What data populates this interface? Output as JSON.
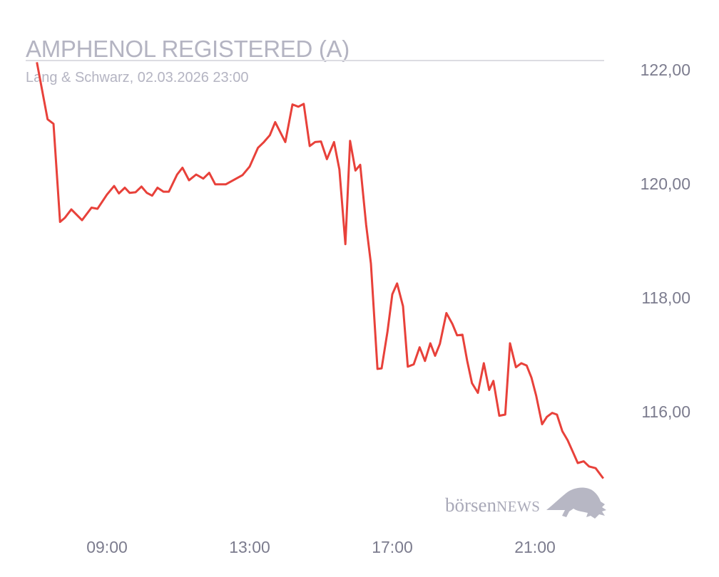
{
  "header": {
    "title": "AMPHENOL REGISTERED (A)",
    "subtitle": "Lang & Schwarz, 02.03.2026 23:00"
  },
  "logo": {
    "text_main": "börsen",
    "text_caps": "NEWS",
    "icon": "bull-icon"
  },
  "colors": {
    "line": "#e8413a",
    "text": "#b4b4c2",
    "ticks": "#7c7c8e",
    "rule": "#dcdce2"
  },
  "chart_data": {
    "type": "line",
    "title": "AMPHENOL REGISTERED (A)",
    "subtitle": "Lang & Schwarz, 02.03.2026 23:00",
    "xlabel": "",
    "ylabel": "",
    "xlim": [
      "07:00",
      "23:00"
    ],
    "ylim": [
      114.1,
      122.16
    ],
    "x_ticks": [
      "09:00",
      "13:00",
      "17:00",
      "21:00"
    ],
    "y_ticks": [
      {
        "value": 122,
        "label": "122,00"
      },
      {
        "value": 120,
        "label": "120,00"
      },
      {
        "value": 118,
        "label": "118,00"
      },
      {
        "value": 116,
        "label": "116,00"
      }
    ],
    "y_axis_position": "right",
    "grid": false,
    "series": [
      {
        "x": [
          "07:02",
          "07:20",
          "07:30",
          "07:41",
          "07:49",
          "08:00",
          "08:18",
          "08:34",
          "08:44",
          "09:00",
          "09:12",
          "09:20",
          "09:30",
          "09:38",
          "09:48",
          "09:58",
          "10:07",
          "10:16",
          "10:25",
          "10:35",
          "10:44",
          "10:58",
          "11:07",
          "11:18",
          "11:30",
          "11:42",
          "11:52",
          "12:02",
          "12:20",
          "12:48",
          "13:00",
          "13:14",
          "13:24",
          "13:34",
          "13:43",
          "14:00",
          "14:12",
          "14:22",
          "14:31",
          "14:41",
          "14:50",
          "15:00",
          "15:10",
          "15:22",
          "15:31",
          "15:41",
          "15:49",
          "15:58",
          "16:06",
          "16:16",
          "16:24",
          "16:35",
          "16:42",
          "16:52",
          "17:00",
          "17:08",
          "17:18",
          "17:26",
          "17:36",
          "17:46",
          "17:55",
          "18:04",
          "18:12",
          "18:20",
          "18:31",
          "18:41",
          "18:49",
          "18:58",
          "19:06",
          "19:14",
          "19:24",
          "19:34",
          "19:43",
          "19:50",
          "20:00",
          "20:10",
          "20:18",
          "20:28",
          "20:37",
          "20:46",
          "20:54",
          "21:02",
          "21:12",
          "21:20",
          "21:29",
          "21:37",
          "21:46",
          "21:55",
          "22:04",
          "22:12",
          "22:22",
          "22:31",
          "22:42",
          "22:55"
        ],
        "y": [
          122.13,
          121.13,
          121.05,
          119.33,
          119.4,
          119.55,
          119.36,
          119.58,
          119.56,
          119.81,
          119.96,
          119.83,
          119.93,
          119.84,
          119.85,
          119.95,
          119.84,
          119.79,
          119.93,
          119.86,
          119.86,
          120.16,
          120.28,
          120.06,
          120.16,
          120.09,
          120.19,
          119.99,
          119.99,
          120.15,
          120.3,
          120.63,
          120.73,
          120.85,
          121.08,
          120.73,
          121.39,
          121.35,
          121.4,
          120.66,
          120.73,
          120.74,
          120.43,
          120.73,
          120.25,
          118.94,
          120.75,
          120.23,
          120.33,
          119.28,
          118.6,
          116.75,
          116.76,
          117.41,
          118.06,
          118.25,
          117.85,
          116.79,
          116.83,
          117.13,
          116.89,
          117.2,
          116.98,
          117.19,
          117.73,
          117.54,
          117.34,
          117.35,
          116.89,
          116.5,
          116.33,
          116.85,
          116.38,
          116.54,
          115.93,
          115.95,
          117.2,
          116.78,
          116.85,
          116.81,
          116.6,
          116.28,
          115.78,
          115.91,
          115.98,
          115.95,
          115.66,
          115.5,
          115.29,
          115.1,
          115.13,
          115.04,
          115.01,
          114.83
        ]
      }
    ]
  }
}
